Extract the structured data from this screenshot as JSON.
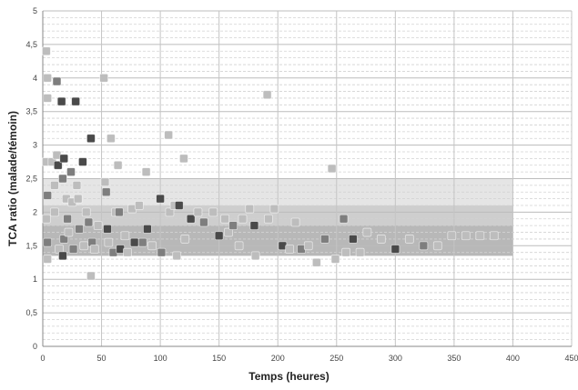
{
  "chart_data": {
    "type": "scatter",
    "title": "",
    "xlabel": "Temps (heures)",
    "ylabel": "TCA ratio (malade/témoin)",
    "xlim": [
      0,
      450
    ],
    "ylim": [
      0,
      5
    ],
    "x_ticks": [
      0,
      50,
      100,
      150,
      200,
      250,
      300,
      350,
      400,
      450
    ],
    "x_tick_labels": [
      "0",
      "50",
      "100",
      "150",
      "200",
      "250",
      "300",
      "350",
      "400",
      "450"
    ],
    "y_ticks": [
      0,
      0.5,
      1,
      1.5,
      2,
      2.5,
      3,
      3.5,
      4,
      4.5,
      5
    ],
    "y_tick_labels": [
      "0",
      "0,5",
      "1",
      "1,5",
      "2",
      "2,5",
      "3",
      "3,5",
      "4",
      "4,5",
      "5"
    ],
    "grid": true,
    "legend": "none",
    "colors": {
      "band_outer": "#dcdcdc",
      "band_middle": "#c6c6c6",
      "band_inner": "#b0b0b0",
      "point_dark": "#4a4a4a",
      "point_mid": "#7e7e7e",
      "point_light": "#bdbdbd"
    },
    "shaded_bands": [
      {
        "x": [
          0,
          400
        ],
        "y": [
          1.35,
          2.5
        ],
        "shade": "outer"
      },
      {
        "x": [
          0,
          400
        ],
        "y": [
          1.35,
          2.1
        ],
        "shade": "middle"
      },
      {
        "x": [
          0,
          400
        ],
        "y": [
          1.35,
          1.8
        ],
        "shade": "inner"
      }
    ],
    "points": [
      {
        "x": 3,
        "y": 4.4,
        "shade": "light"
      },
      {
        "x": 4,
        "y": 4.0,
        "shade": "light"
      },
      {
        "x": 4,
        "y": 3.7,
        "shade": "light"
      },
      {
        "x": 3,
        "y": 2.75,
        "shade": "light"
      },
      {
        "x": 4,
        "y": 2.25,
        "shade": "mid"
      },
      {
        "x": 3,
        "y": 1.9,
        "shade": "light"
      },
      {
        "x": 4,
        "y": 1.55,
        "shade": "mid"
      },
      {
        "x": 4,
        "y": 1.3,
        "shade": "light"
      },
      {
        "x": 8,
        "y": 2.75,
        "shade": "light"
      },
      {
        "x": 10,
        "y": 2.4,
        "shade": "light"
      },
      {
        "x": 10,
        "y": 2.0,
        "shade": "light"
      },
      {
        "x": 12,
        "y": 3.95,
        "shade": "mid"
      },
      {
        "x": 12,
        "y": 2.85,
        "shade": "light"
      },
      {
        "x": 13,
        "y": 2.7,
        "shade": "dark"
      },
      {
        "x": 14,
        "y": 1.45,
        "shade": "light"
      },
      {
        "x": 16,
        "y": 3.65,
        "shade": "dark"
      },
      {
        "x": 17,
        "y": 2.5,
        "shade": "mid"
      },
      {
        "x": 18,
        "y": 2.8,
        "shade": "dark"
      },
      {
        "x": 18,
        "y": 1.6,
        "shade": "mid"
      },
      {
        "x": 17,
        "y": 1.35,
        "shade": "dark"
      },
      {
        "x": 20,
        "y": 2.2,
        "shade": "light"
      },
      {
        "x": 21,
        "y": 1.9,
        "shade": "mid"
      },
      {
        "x": 22,
        "y": 1.7,
        "shade": "light"
      },
      {
        "x": 24,
        "y": 2.6,
        "shade": "mid"
      },
      {
        "x": 25,
        "y": 2.15,
        "shade": "light"
      },
      {
        "x": 26,
        "y": 1.45,
        "shade": "mid"
      },
      {
        "x": 28,
        "y": 3.65,
        "shade": "dark"
      },
      {
        "x": 29,
        "y": 2.4,
        "shade": "light"
      },
      {
        "x": 30,
        "y": 2.2,
        "shade": "light"
      },
      {
        "x": 31,
        "y": 1.75,
        "shade": "mid"
      },
      {
        "x": 34,
        "y": 2.75,
        "shade": "dark"
      },
      {
        "x": 35,
        "y": 1.5,
        "shade": "light"
      },
      {
        "x": 37,
        "y": 2.0,
        "shade": "light"
      },
      {
        "x": 39,
        "y": 1.85,
        "shade": "mid"
      },
      {
        "x": 41,
        "y": 3.1,
        "shade": "dark"
      },
      {
        "x": 41,
        "y": 1.05,
        "shade": "light"
      },
      {
        "x": 42,
        "y": 1.55,
        "shade": "mid"
      },
      {
        "x": 44,
        "y": 1.45,
        "shade": "light"
      },
      {
        "x": 47,
        "y": 1.8,
        "shade": "light"
      },
      {
        "x": 52,
        "y": 4.0,
        "shade": "light"
      },
      {
        "x": 53,
        "y": 2.45,
        "shade": "light"
      },
      {
        "x": 54,
        "y": 2.3,
        "shade": "mid"
      },
      {
        "x": 55,
        "y": 1.75,
        "shade": "dark"
      },
      {
        "x": 56,
        "y": 1.55,
        "shade": "light"
      },
      {
        "x": 58,
        "y": 3.1,
        "shade": "light"
      },
      {
        "x": 60,
        "y": 1.4,
        "shade": "mid"
      },
      {
        "x": 62,
        "y": 2.0,
        "shade": "light"
      },
      {
        "x": 64,
        "y": 2.7,
        "shade": "light"
      },
      {
        "x": 65,
        "y": 2.0,
        "shade": "mid"
      },
      {
        "x": 66,
        "y": 1.45,
        "shade": "dark"
      },
      {
        "x": 70,
        "y": 1.65,
        "shade": "light"
      },
      {
        "x": 72,
        "y": 1.4,
        "shade": "light"
      },
      {
        "x": 76,
        "y": 2.05,
        "shade": "light"
      },
      {
        "x": 78,
        "y": 1.55,
        "shade": "dark"
      },
      {
        "x": 82,
        "y": 2.1,
        "shade": "light"
      },
      {
        "x": 85,
        "y": 1.55,
        "shade": "mid"
      },
      {
        "x": 88,
        "y": 2.6,
        "shade": "light"
      },
      {
        "x": 89,
        "y": 1.75,
        "shade": "dark"
      },
      {
        "x": 93,
        "y": 1.5,
        "shade": "light"
      },
      {
        "x": 100,
        "y": 2.2,
        "shade": "dark"
      },
      {
        "x": 101,
        "y": 1.4,
        "shade": "mid"
      },
      {
        "x": 107,
        "y": 3.15,
        "shade": "light"
      },
      {
        "x": 108,
        "y": 2.0,
        "shade": "light"
      },
      {
        "x": 112,
        "y": 2.1,
        "shade": "light"
      },
      {
        "x": 114,
        "y": 1.35,
        "shade": "light"
      },
      {
        "x": 116,
        "y": 2.1,
        "shade": "dark"
      },
      {
        "x": 120,
        "y": 2.8,
        "shade": "light"
      },
      {
        "x": 121,
        "y": 1.6,
        "shade": "light"
      },
      {
        "x": 126,
        "y": 1.9,
        "shade": "dark"
      },
      {
        "x": 132,
        "y": 2.0,
        "shade": "light"
      },
      {
        "x": 137,
        "y": 1.85,
        "shade": "mid"
      },
      {
        "x": 145,
        "y": 2.0,
        "shade": "light"
      },
      {
        "x": 150,
        "y": 1.65,
        "shade": "dark"
      },
      {
        "x": 155,
        "y": 1.9,
        "shade": "light"
      },
      {
        "x": 158,
        "y": 1.7,
        "shade": "light"
      },
      {
        "x": 162,
        "y": 1.8,
        "shade": "mid"
      },
      {
        "x": 167,
        "y": 1.5,
        "shade": "light"
      },
      {
        "x": 170,
        "y": 1.9,
        "shade": "light"
      },
      {
        "x": 176,
        "y": 2.05,
        "shade": "light"
      },
      {
        "x": 180,
        "y": 1.8,
        "shade": "dark"
      },
      {
        "x": 181,
        "y": 1.35,
        "shade": "light"
      },
      {
        "x": 191,
        "y": 3.75,
        "shade": "light"
      },
      {
        "x": 192,
        "y": 1.9,
        "shade": "light"
      },
      {
        "x": 197,
        "y": 2.05,
        "shade": "light"
      },
      {
        "x": 204,
        "y": 1.5,
        "shade": "dark"
      },
      {
        "x": 210,
        "y": 1.45,
        "shade": "light"
      },
      {
        "x": 215,
        "y": 1.85,
        "shade": "light"
      },
      {
        "x": 220,
        "y": 1.45,
        "shade": "mid"
      },
      {
        "x": 226,
        "y": 1.5,
        "shade": "light"
      },
      {
        "x": 233,
        "y": 1.25,
        "shade": "light"
      },
      {
        "x": 240,
        "y": 1.6,
        "shade": "mid"
      },
      {
        "x": 246,
        "y": 2.65,
        "shade": "light"
      },
      {
        "x": 249,
        "y": 1.3,
        "shade": "light"
      },
      {
        "x": 256,
        "y": 1.9,
        "shade": "mid"
      },
      {
        "x": 258,
        "y": 1.4,
        "shade": "light"
      },
      {
        "x": 264,
        "y": 1.6,
        "shade": "dark"
      },
      {
        "x": 270,
        "y": 1.4,
        "shade": "light"
      },
      {
        "x": 276,
        "y": 1.7,
        "shade": "light"
      },
      {
        "x": 288,
        "y": 1.6,
        "shade": "light"
      },
      {
        "x": 300,
        "y": 1.45,
        "shade": "dark"
      },
      {
        "x": 312,
        "y": 1.6,
        "shade": "light"
      },
      {
        "x": 324,
        "y": 1.5,
        "shade": "mid"
      },
      {
        "x": 336,
        "y": 1.5,
        "shade": "light"
      },
      {
        "x": 348,
        "y": 1.65,
        "shade": "light"
      },
      {
        "x": 360,
        "y": 1.65,
        "shade": "light"
      },
      {
        "x": 372,
        "y": 1.65,
        "shade": "light"
      },
      {
        "x": 384,
        "y": 1.65,
        "shade": "light"
      }
    ]
  }
}
